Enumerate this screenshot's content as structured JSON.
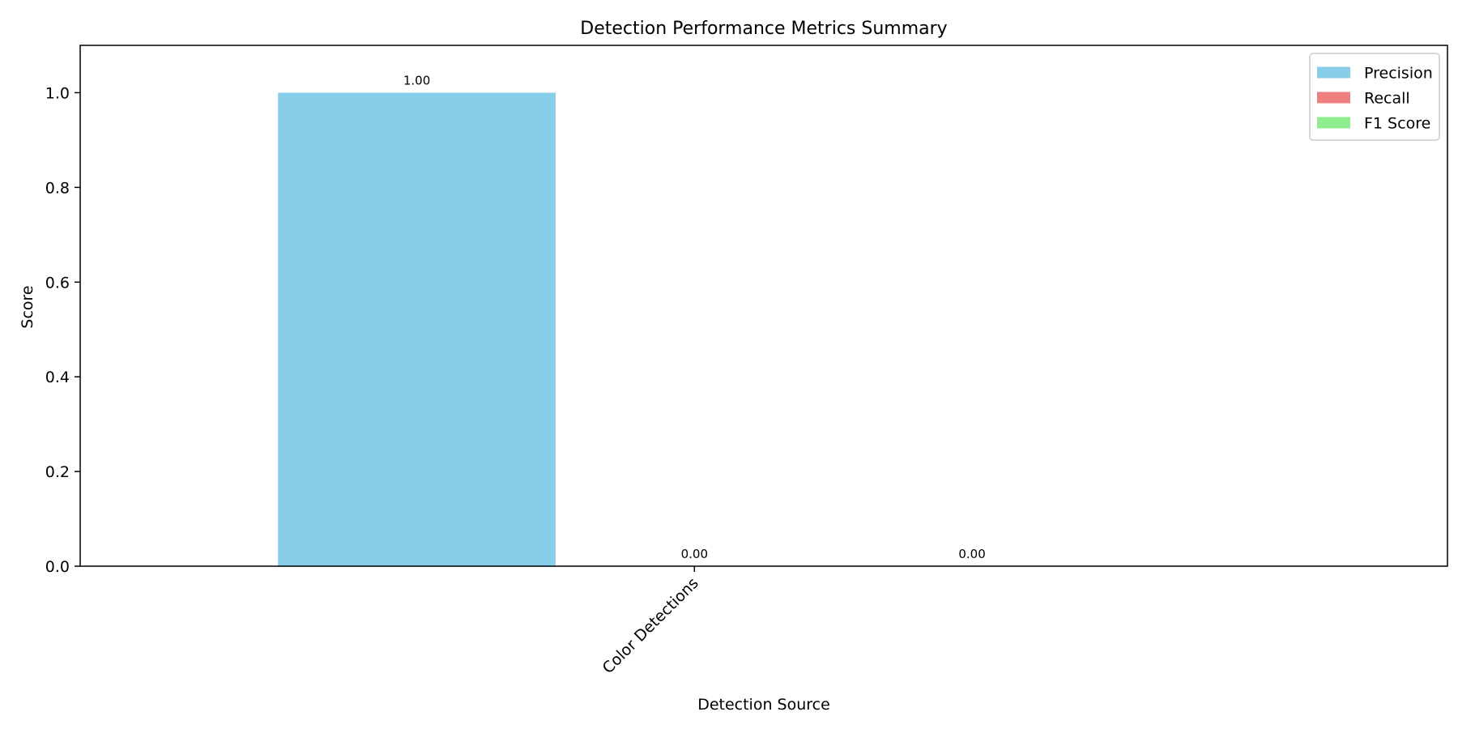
{
  "chart_data": {
    "type": "bar",
    "title": "Detection Performance Metrics Summary",
    "xlabel": "Detection Source",
    "ylabel": "Score",
    "categories": [
      "Color Detections"
    ],
    "series": [
      {
        "name": "Precision",
        "values": [
          1.0
        ],
        "color": "#87ceeb",
        "value_label": "1.00"
      },
      {
        "name": "Recall",
        "values": [
          0.0
        ],
        "color": "#f08080",
        "value_label": "0.00"
      },
      {
        "name": "F1 Score",
        "values": [
          0.0
        ],
        "color": "#90ee90",
        "value_label": "0.00"
      }
    ],
    "ylim": [
      0,
      1.1
    ],
    "yticks": [
      "0.0",
      "0.2",
      "0.4",
      "0.6",
      "0.8",
      "1.0"
    ],
    "legend_position": "top-right",
    "grid": false
  }
}
